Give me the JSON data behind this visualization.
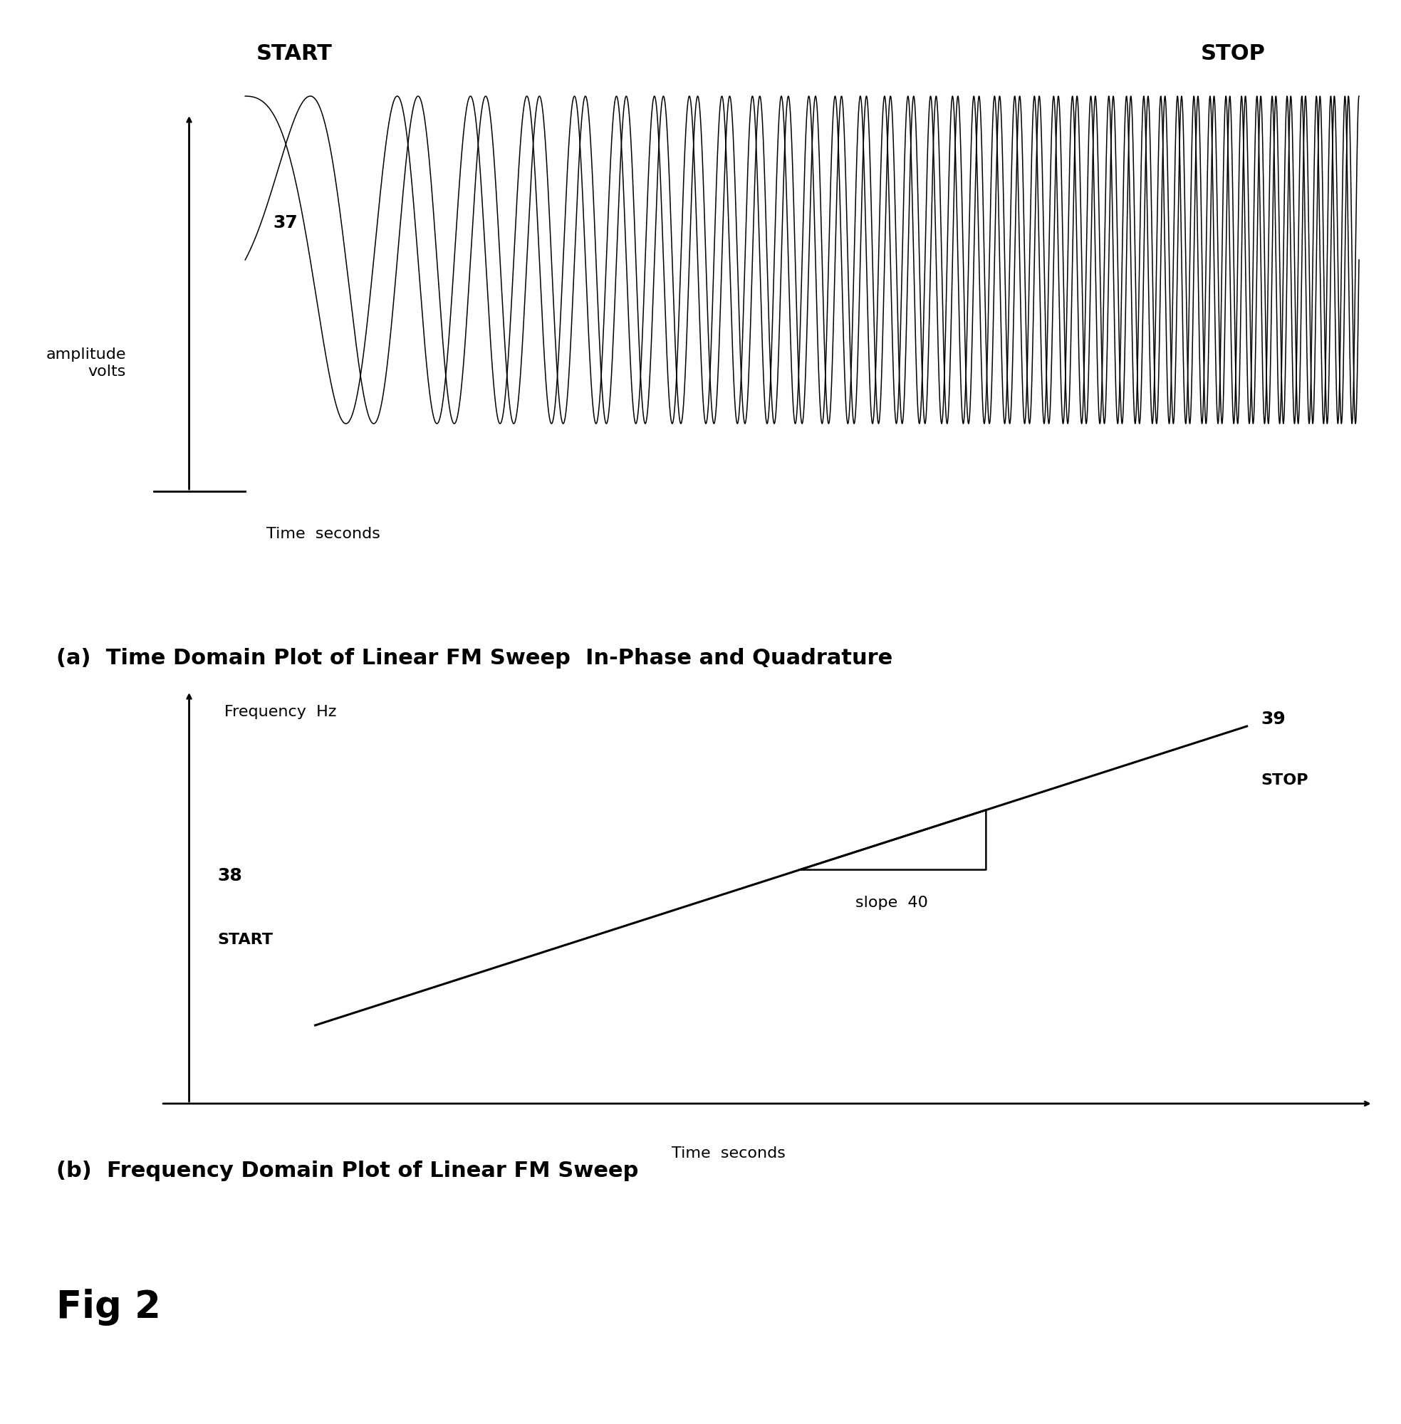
{
  "bg_color": "#ffffff",
  "text_color": "#000000",
  "panel_a": {
    "start_label": "START",
    "stop_label": "STOP",
    "label_37": "37",
    "xlabel": "Time  seconds",
    "ylabel_line1": "amplitude",
    "ylabel_line2": "volts",
    "caption": "(a)  Time Domain Plot of Linear FM Sweep  In-Phase and Quadrature",
    "f0": 2.0,
    "f1": 80.0,
    "n_points": 8000
  },
  "panel_b": {
    "xlabel": "Time  seconds",
    "ylabel": "Frequency  Hz",
    "label_38": "38",
    "start_label": "START",
    "label_39": "39",
    "stop_label": "STOP",
    "slope_label": "slope",
    "label_40": "40",
    "caption": "(b)  Frequency Domain Plot of Linear FM Sweep"
  },
  "fig_label": "Fig 2"
}
